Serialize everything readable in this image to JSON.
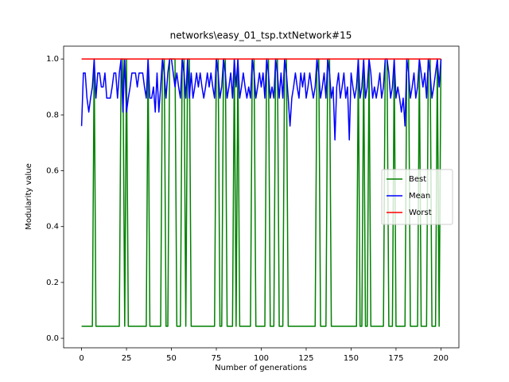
{
  "chart_data": {
    "type": "line",
    "title": "networks\\easy_01_tsp.txtNetwork#15",
    "x_label": "Number of generations",
    "y_label": "Modularity value",
    "xlim": [
      -10,
      210
    ],
    "ylim": [
      -0.034,
      1.046
    ],
    "xticks": [
      0,
      25,
      50,
      75,
      100,
      125,
      150,
      175,
      200
    ],
    "yticks": [
      {
        "value": 0,
        "label": "0.0"
      },
      0.2,
      0.4,
      0.6,
      0.8,
      {
        "value": 1,
        "label": "1.0"
      }
    ],
    "grid": false,
    "legend": "center right",
    "x": [
      0,
      1,
      2,
      3,
      4,
      5,
      6,
      7,
      8,
      9,
      10,
      11,
      12,
      13,
      14,
      15,
      16,
      17,
      18,
      19,
      20,
      21,
      22,
      23,
      24,
      25,
      26,
      27,
      28,
      29,
      30,
      31,
      32,
      33,
      34,
      35,
      36,
      37,
      38,
      39,
      40,
      41,
      42,
      43,
      44,
      45,
      46,
      47,
      48,
      49,
      50,
      51,
      52,
      53,
      54,
      55,
      56,
      57,
      58,
      59,
      60,
      61,
      62,
      63,
      64,
      65,
      66,
      67,
      68,
      69,
      70,
      71,
      72,
      73,
      74,
      75,
      76,
      77,
      78,
      79,
      80,
      81,
      82,
      83,
      84,
      85,
      86,
      87,
      88,
      89,
      90,
      91,
      92,
      93,
      94,
      95,
      96,
      97,
      98,
      99,
      100,
      101,
      102,
      103,
      104,
      105,
      106,
      107,
      108,
      109,
      110,
      111,
      112,
      113,
      114,
      115,
      116,
      117,
      118,
      119,
      120,
      121,
      122,
      123,
      124,
      125,
      126,
      127,
      128,
      129,
      130,
      131,
      132,
      133,
      134,
      135,
      136,
      137,
      138,
      139,
      140,
      141,
      142,
      143,
      144,
      145,
      146,
      147,
      148,
      149,
      150,
      151,
      152,
      153,
      154,
      155,
      156,
      157,
      158,
      159,
      160,
      161,
      162,
      163,
      164,
      165,
      166,
      167,
      168,
      169,
      170,
      171,
      172,
      173,
      174,
      175,
      176,
      177,
      178,
      179,
      180,
      181,
      182,
      183,
      184,
      185,
      186,
      187,
      188,
      189,
      190,
      191,
      192,
      193,
      194,
      195,
      196,
      197,
      198,
      199,
      200
    ],
    "series": [
      {
        "name": "Best",
        "color": "#008000",
        "values": [
          0.043,
          0.043,
          0.043,
          0.043,
          0.043,
          0.043,
          0.043,
          1,
          0.043,
          0.043,
          0.043,
          0.043,
          0.043,
          0.043,
          0.043,
          0.043,
          0.043,
          0.043,
          0.043,
          0.043,
          0.043,
          0.043,
          1,
          1,
          0.043,
          1,
          0.043,
          0.043,
          0.043,
          0.043,
          0.043,
          0.043,
          0.043,
          0.043,
          0.043,
          0.043,
          0.043,
          1,
          0.043,
          0.043,
          0.043,
          0.043,
          0.043,
          0.043,
          0.043,
          1,
          1,
          0.043,
          0.043,
          1,
          1,
          1,
          1,
          0.043,
          0.043,
          0.043,
          1,
          1,
          0.043,
          1,
          1,
          0.043,
          0.043,
          0.043,
          0.043,
          0.043,
          0.043,
          0.043,
          0.043,
          0.043,
          0.043,
          0.043,
          0.043,
          0.043,
          0.043,
          1,
          1,
          0.043,
          0.043,
          1,
          1,
          0.043,
          0.043,
          0.043,
          0.043,
          1,
          0.043,
          1,
          0.043,
          0.043,
          0.043,
          0.043,
          0.043,
          0.043,
          0.043,
          1,
          1,
          0.043,
          0.043,
          0.043,
          0.043,
          0.043,
          0.043,
          1,
          1,
          0.043,
          0.043,
          0.043,
          1,
          1,
          0.043,
          0.043,
          0.043,
          1,
          1,
          0.043,
          0.043,
          0.043,
          0.043,
          0.043,
          0.043,
          0.043,
          0.043,
          0.043,
          0.043,
          0.043,
          0.043,
          0.043,
          0.043,
          0.043,
          0.043,
          1,
          1,
          0.043,
          0.043,
          0.043,
          0.043,
          1,
          1,
          0.043,
          0.043,
          0.043,
          0.043,
          0.043,
          0.043,
          0.043,
          0.043,
          0.043,
          0.043,
          0.043,
          0.043,
          0.043,
          0.043,
          0.043,
          1,
          0.043,
          0.043,
          1,
          0.043,
          0.043,
          1,
          0.043,
          0.043,
          0.043,
          0.043,
          0.043,
          0.043,
          0.043,
          0.043,
          1,
          1,
          0.043,
          0.043,
          0.043,
          1,
          0.043,
          0.043,
          0.043,
          0.043,
          0.043,
          0.043,
          1,
          1,
          0.043,
          0.043,
          0.043,
          0.043,
          0.043,
          1,
          0.043,
          0.043,
          0.043,
          0.043,
          1,
          1,
          0.043,
          0.043,
          0.043,
          1,
          0.043,
          1
        ]
      },
      {
        "name": "Mean",
        "color": "#0000ff",
        "values": [
          0.76,
          0.95,
          0.95,
          0.86,
          0.81,
          0.86,
          0.9,
          1,
          0.86,
          0.95,
          0.95,
          0.9,
          0.9,
          0.95,
          0.86,
          0.86,
          0.86,
          0.9,
          0.95,
          0.95,
          0.86,
          0.95,
          1,
          0.81,
          1,
          0.81,
          0.86,
          0.9,
          0.95,
          0.95,
          0.95,
          0.9,
          0.95,
          0.95,
          0.95,
          0.9,
          0.86,
          1,
          0.86,
          0.86,
          0.9,
          0.81,
          0.95,
          0.81,
          0.9,
          1,
          0.95,
          0.86,
          0.95,
          1,
          1,
          0.95,
          0.9,
          0.95,
          0.9,
          0.86,
          1,
          0.95,
          0.86,
          1,
          0.86,
          0.95,
          0.86,
          0.9,
          0.95,
          0.9,
          0.95,
          0.9,
          0.86,
          0.9,
          0.95,
          0.9,
          0.95,
          0.9,
          0.86,
          1,
          0.95,
          0.86,
          0.9,
          1,
          0.95,
          0.86,
          0.9,
          0.95,
          0.86,
          1,
          0.9,
          1,
          0.86,
          0.9,
          0.95,
          0.9,
          0.86,
          0.9,
          0.86,
          1,
          0.95,
          0.86,
          0.9,
          0.95,
          0.9,
          0.95,
          0.86,
          1,
          0.95,
          0.86,
          0.9,
          0.86,
          1,
          0.95,
          0.86,
          0.95,
          0.86,
          1,
          0.95,
          0.86,
          0.76,
          0.86,
          0.9,
          0.95,
          0.9,
          0.86,
          0.95,
          0.9,
          0.95,
          0.86,
          0.9,
          0.95,
          0.9,
          0.86,
          0.9,
          1,
          0.95,
          0.86,
          0.9,
          0.95,
          0.86,
          1,
          0.95,
          0.86,
          0.9,
          0.71,
          0.9,
          0.95,
          0.86,
          0.9,
          0.95,
          0.86,
          0.9,
          0.71,
          0.95,
          0.9,
          0.86,
          0.9,
          1,
          0.86,
          0.9,
          1,
          0.86,
          0.9,
          1,
          0.95,
          0.86,
          0.9,
          0.86,
          0.9,
          0.95,
          0.86,
          0.9,
          1,
          1,
          0.95,
          0.86,
          0.9,
          1,
          0.86,
          0.9,
          0.86,
          0.81,
          0.86,
          0.76,
          1,
          0.95,
          0.86,
          0.9,
          0.95,
          0.86,
          0.9,
          1,
          0.95,
          0.9,
          0.95,
          0.86,
          1,
          0.95,
          0.86,
          0.9,
          0.95,
          1,
          0.9,
          1
        ]
      },
      {
        "name": "Worst",
        "color": "#ff0000",
        "values": [
          1,
          1,
          1,
          1,
          1,
          1,
          1,
          1,
          1,
          1,
          1,
          1,
          1,
          1,
          1,
          1,
          1,
          1,
          1,
          1,
          1,
          1,
          1,
          1,
          1,
          1,
          1,
          1,
          1,
          1,
          1,
          1,
          1,
          1,
          1,
          1,
          1,
          1,
          1,
          1,
          1,
          1,
          1,
          1,
          1,
          1,
          1,
          1,
          1,
          1,
          1,
          1,
          1,
          1,
          1,
          1,
          1,
          1,
          1,
          1,
          1,
          1,
          1,
          1,
          1,
          1,
          1,
          1,
          1,
          1,
          1,
          1,
          1,
          1,
          1,
          1,
          1,
          1,
          1,
          1,
          1,
          1,
          1,
          1,
          1,
          1,
          1,
          1,
          1,
          1,
          1,
          1,
          1,
          1,
          1,
          1,
          1,
          1,
          1,
          1,
          1,
          1,
          1,
          1,
          1,
          1,
          1,
          1,
          1,
          1,
          1,
          1,
          1,
          1,
          1,
          1,
          1,
          1,
          1,
          1,
          1,
          1,
          1,
          1,
          1,
          1,
          1,
          1,
          1,
          1,
          1,
          1,
          1,
          1,
          1,
          1,
          1,
          1,
          1,
          1,
          1,
          1,
          1,
          1,
          1,
          1,
          1,
          1,
          1,
          1,
          1,
          1,
          1,
          1,
          1,
          1,
          1,
          1,
          1,
          1,
          1,
          1,
          1,
          1,
          1,
          1,
          1,
          1,
          1,
          1,
          1,
          1,
          1,
          1,
          1,
          1,
          1,
          1,
          1,
          1,
          1,
          1,
          1,
          1,
          1,
          1,
          1,
          1,
          1,
          1,
          1,
          1,
          1,
          1,
          1,
          1,
          1,
          1,
          1,
          1,
          1
        ]
      }
    ]
  }
}
